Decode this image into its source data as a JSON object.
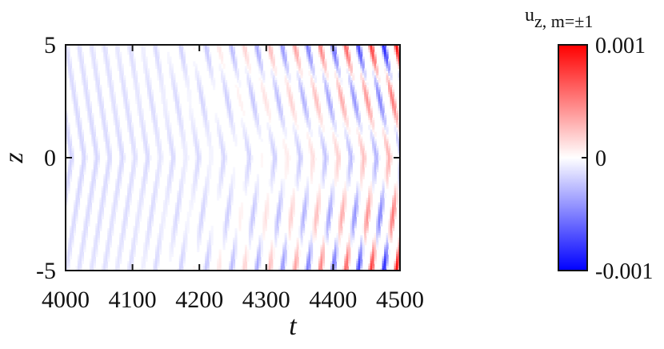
{
  "chart_data": {
    "type": "heatmap",
    "title": "",
    "xlabel": "t",
    "ylabel": "z",
    "xlim": [
      4000,
      4500
    ],
    "ylim": [
      -5,
      5
    ],
    "x_ticks": [
      "4000",
      "4100",
      "4200",
      "4300",
      "4400",
      "4500"
    ],
    "y_ticks": [
      "5",
      "0",
      "-5"
    ],
    "colorbar": {
      "title_main": "u",
      "title_sub": "z, m=±1",
      "ticks": [
        "0.001",
        "0",
        "-0.001"
      ],
      "range": [
        -0.001,
        0.001
      ],
      "colors": {
        "low": "#0000ff",
        "mid": "#ffffff",
        "high": "#ff0000"
      }
    },
    "pattern": {
      "description_values": {
        "stripe_slope_dt_per_unit_z": 5.5,
        "stripe_period_t": 19,
        "amplitude_start": -0.00018,
        "amplitude_end_edge": 0.001
      }
    }
  }
}
